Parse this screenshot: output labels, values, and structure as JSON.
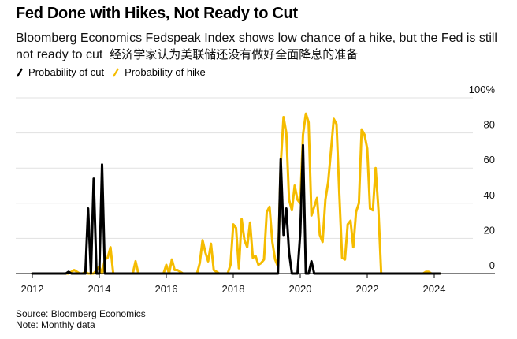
{
  "header": {
    "title": "Fed Done with Hikes, Not Ready to Cut",
    "subtitle_en": "Bloomberg Economics Fedspeak Index shows low chance of a hike, but the Fed is still not ready to cut",
    "subtitle_zh": "经济学家认为美联储还没有做好全面降息的准备"
  },
  "footer": {
    "source": "Source: Bloomberg Economics",
    "note": "Note: Monthly data"
  },
  "chart_data": {
    "type": "line",
    "title": "Fed Done with Hikes, Not Ready to Cut",
    "xlabel": "",
    "ylabel": "",
    "x_start": "2012-01",
    "x_frequency": "monthly",
    "xlim": [
      2011.5,
      2025.3
    ],
    "ylim": [
      0,
      100
    ],
    "y_ticks": [
      "0",
      "20",
      "40",
      "60",
      "80",
      "100%"
    ],
    "x_ticks": [
      "2012",
      "2014",
      "2016",
      "2018",
      "2020",
      "2022",
      "2024"
    ],
    "x_tick_values": [
      2012,
      2014,
      2016,
      2018,
      2020,
      2022,
      2024
    ],
    "grid": true,
    "legend": "top-left",
    "colors": {
      "cut": "#000000",
      "hike": "#f5bc00",
      "grid": "#e1e1e1",
      "axis": "#000000"
    },
    "series": [
      {
        "name": "Probability of cut",
        "color": "#000000",
        "values": [
          0,
          0,
          0,
          0,
          0,
          0,
          0,
          0,
          0,
          0,
          0,
          0,
          0,
          1,
          0,
          0,
          0,
          0,
          0,
          0,
          37,
          0,
          54,
          0,
          0,
          62,
          0,
          0,
          0,
          0,
          0,
          0,
          0,
          0,
          0,
          0,
          0,
          0,
          0,
          0,
          0,
          0,
          0,
          0,
          0,
          0,
          0,
          0,
          0,
          0,
          0,
          0,
          0,
          0,
          0,
          0,
          0,
          0,
          0,
          0,
          0,
          0,
          0,
          0,
          0,
          0,
          0,
          0,
          0,
          0,
          0,
          0,
          0,
          0,
          0,
          0,
          0,
          0,
          0,
          0,
          0,
          0,
          0,
          0,
          0,
          0,
          0,
          0,
          0,
          65,
          22,
          37,
          12,
          0,
          0,
          0,
          23,
          73,
          0,
          0,
          7,
          0,
          0,
          0,
          0,
          0,
          0,
          0,
          0,
          0,
          0,
          0,
          0,
          0,
          0,
          0,
          0,
          0,
          0,
          0,
          0,
          0,
          0,
          0,
          0,
          0,
          0,
          0,
          0,
          0,
          0,
          0,
          0,
          0,
          0,
          0,
          0,
          0,
          0,
          0,
          0,
          0,
          0,
          0,
          0,
          0,
          0
        ]
      },
      {
        "name": "Probability of hike",
        "color": "#f5bc00",
        "values": [
          0,
          0,
          0,
          0,
          0,
          0,
          0,
          0,
          0,
          0,
          0,
          0,
          0,
          0,
          1,
          2,
          1,
          0,
          0,
          1,
          0,
          0,
          0,
          2,
          4,
          0,
          8,
          9,
          15,
          0,
          0,
          0,
          0,
          0,
          0,
          0,
          0,
          7,
          0,
          0,
          0,
          0,
          0,
          0,
          0,
          0,
          0,
          0,
          5,
          0,
          8,
          2,
          2,
          1,
          0,
          0,
          0,
          0,
          0,
          0,
          6,
          19,
          12,
          7,
          17,
          2,
          1,
          0,
          0,
          0,
          0,
          5,
          28,
          26,
          3,
          31,
          19,
          15,
          29,
          9,
          10,
          5,
          6,
          8,
          35,
          38,
          18,
          8,
          4,
          62,
          89,
          80,
          42,
          36,
          50,
          42,
          40,
          79,
          91,
          86,
          33,
          38,
          43,
          22,
          18,
          42,
          52,
          70,
          88,
          85,
          45,
          9,
          8,
          28,
          30,
          15,
          35,
          40,
          82,
          79,
          71,
          37,
          36,
          60,
          36,
          0,
          0,
          0,
          0,
          0,
          0,
          0,
          0,
          0,
          0,
          0,
          0,
          0,
          0,
          0,
          0,
          1,
          1,
          0,
          0,
          0,
          0
        ]
      }
    ]
  }
}
